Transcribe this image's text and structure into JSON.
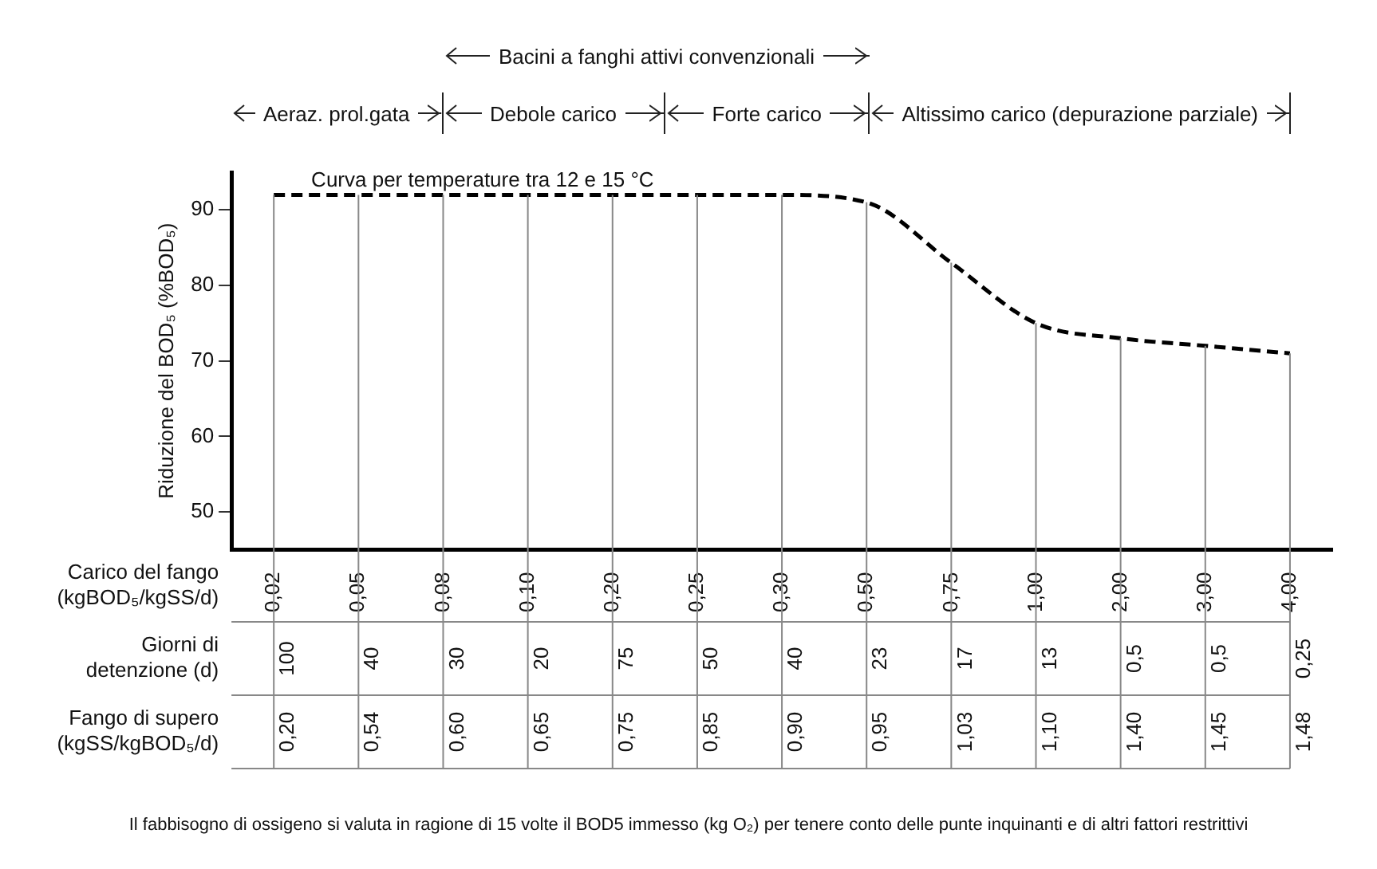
{
  "chart_data": {
    "type": "line",
    "ylabel": "Riduzione del BOD₅ (%BOD₅)",
    "xlabel": "Carico del fango (kgBOD₅/kgSS/d)",
    "categories": [
      "0,02",
      "0,05",
      "0,08",
      "0,10",
      "0,20",
      "0,25",
      "0,30",
      "0,50",
      "0,75",
      "1,00",
      "2,00",
      "3,00",
      "4,00"
    ],
    "series": [
      {
        "color": "#000000",
        "values": [
          92,
          92,
          92,
          92,
          92,
          92,
          92,
          91,
          83,
          75,
          73,
          72,
          71
        ],
        "line_style": "dashed",
        "marker": "none"
      }
    ],
    "ylim": [
      45,
      95
    ],
    "yticks": [
      50,
      60,
      70,
      80,
      90
    ],
    "grid": "x",
    "legend": false,
    "annotations": [
      "Bacini a fanghi attivi convenzionali",
      "Aeraz. prol.gata",
      "Debole carico",
      "Forte carico",
      "Altissimo carico (depurazione parziale)",
      "Curva per temperature tra 12 e 15 °C",
      "Giorni di detenzione (d)",
      "100",
      "40",
      "30",
      "20",
      "75",
      "50",
      "40",
      "23",
      "17",
      "13",
      "0,5",
      "0,5",
      "0,25",
      "Fango di supero (kgSS/kgBOD₅/d)",
      "0,20",
      "0,54",
      "0,60",
      "0,65",
      "0,75",
      "0,85",
      "0,90",
      "0,95",
      "1,03",
      "1,10",
      "1,40",
      "1,45",
      "1,48",
      "Il fabbisogno di ossigeno si valuta in ragione di 15 volte il BOD5 immesso (kg O₂) per tenere conto delle punte inquinanti e di altri fattori restrittivi"
    ]
  }
}
